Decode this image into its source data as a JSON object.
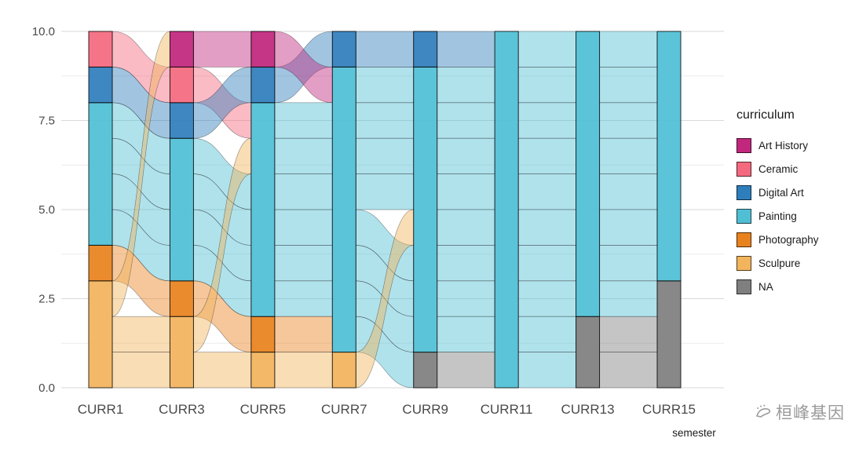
{
  "watermark": {
    "text": "桓峰基因"
  },
  "chart_data": {
    "type": "alluvial",
    "title": "",
    "xlabel": "semester",
    "ylabel": "",
    "ylim": [
      0,
      10
    ],
    "grid": true,
    "y_ticks": [
      {
        "label": "0.0",
        "value": 0
      },
      {
        "label": "2.5",
        "value": 2.5
      },
      {
        "label": "5.0",
        "value": 5
      },
      {
        "label": "7.5",
        "value": 7.5
      },
      {
        "label": "10.0",
        "value": 10
      }
    ],
    "y_minor": [
      1.25,
      3.75,
      6.25,
      8.75
    ],
    "axes": [
      "CURR1",
      "CURR3",
      "CURR5",
      "CURR7",
      "CURR9",
      "CURR11",
      "CURR13",
      "CURR15"
    ],
    "legend": {
      "title": "curriculum",
      "position": "right",
      "entries": [
        {
          "label": "Art History",
          "color": "#C2277E"
        },
        {
          "label": "Ceramic",
          "color": "#F4697F"
        },
        {
          "label": "Digital Art",
          "color": "#2F7EBC"
        },
        {
          "label": "Painting",
          "color": "#50BFD5"
        },
        {
          "label": "Photography",
          "color": "#E8821E"
        },
        {
          "label": "Sculpure",
          "color": "#F2B45C"
        },
        {
          "label": "NA",
          "color": "#7F7F7F"
        }
      ]
    },
    "colors": {
      "Art History": "#C2277E",
      "Ceramic": "#F4697F",
      "Digital Art": "#2F7EBC",
      "Painting": "#50BFD5",
      "Photography": "#E8821E",
      "Sculpure": "#F2B45C",
      "NA": "#7F7F7F"
    },
    "strata": [
      [
        {
          "c": "Sculpure",
          "y0": 0,
          "y1": 3
        },
        {
          "c": "Photography",
          "y0": 3,
          "y1": 4
        },
        {
          "c": "Painting",
          "y0": 4,
          "y1": 8
        },
        {
          "c": "Digital Art",
          "y0": 8,
          "y1": 9
        },
        {
          "c": "Ceramic",
          "y0": 9,
          "y1": 10
        }
      ],
      [
        {
          "c": "Sculpure",
          "y0": 0,
          "y1": 2
        },
        {
          "c": "Photography",
          "y0": 2,
          "y1": 3
        },
        {
          "c": "Painting",
          "y0": 3,
          "y1": 7
        },
        {
          "c": "Digital Art",
          "y0": 7,
          "y1": 8
        },
        {
          "c": "Ceramic",
          "y0": 8,
          "y1": 9
        },
        {
          "c": "Art History",
          "y0": 9,
          "y1": 10
        }
      ],
      [
        {
          "c": "Sculpure",
          "y0": 0,
          "y1": 1
        },
        {
          "c": "Photography",
          "y0": 1,
          "y1": 2
        },
        {
          "c": "Painting",
          "y0": 2,
          "y1": 8
        },
        {
          "c": "Digital Art",
          "y0": 8,
          "y1": 9
        },
        {
          "c": "Art History",
          "y0": 9,
          "y1": 10
        }
      ],
      [
        {
          "c": "Sculpure",
          "y0": 0,
          "y1": 1
        },
        {
          "c": "Painting",
          "y0": 1,
          "y1": 9
        },
        {
          "c": "Digital Art",
          "y0": 9,
          "y1": 10
        }
      ],
      [
        {
          "c": "NA",
          "y0": 0,
          "y1": 1
        },
        {
          "c": "Painting",
          "y0": 1,
          "y1": 9
        },
        {
          "c": "Digital Art",
          "y0": 9,
          "y1": 10
        }
      ],
      [
        {
          "c": "Painting",
          "y0": 0,
          "y1": 10
        }
      ],
      [
        {
          "c": "NA",
          "y0": 0,
          "y1": 2
        },
        {
          "c": "Painting",
          "y0": 2,
          "y1": 10
        }
      ],
      [
        {
          "c": "NA",
          "y0": 0,
          "y1": 3
        },
        {
          "c": "Painting",
          "y0": 3,
          "y1": 10
        }
      ]
    ],
    "alluvia": [
      {
        "cats": [
          "Ceramic",
          "Ceramic",
          "Painting",
          "Painting",
          "Painting",
          "Painting",
          "Painting",
          "Painting"
        ],
        "y": [
          9,
          8,
          7,
          7,
          7,
          7,
          7,
          7
        ]
      },
      {
        "cats": [
          "Digital Art",
          "Digital Art",
          "Digital Art",
          "Digital Art",
          "Digital Art",
          "Painting",
          "Painting",
          "Painting"
        ],
        "y": [
          8,
          7,
          8,
          9,
          9,
          9,
          9,
          9
        ]
      },
      {
        "cats": [
          "Painting",
          "Painting",
          "Painting",
          "Painting",
          "Painting",
          "Painting",
          "NA",
          "NA"
        ],
        "y": [
          4,
          3,
          2,
          2,
          1,
          1,
          1,
          1
        ]
      },
      {
        "cats": [
          "Painting",
          "Painting",
          "Painting",
          "Painting",
          "Painting",
          "Painting",
          "Painting",
          "NA"
        ],
        "y": [
          5,
          4,
          3,
          3,
          2,
          2,
          2,
          2
        ]
      },
      {
        "cats": [
          "Painting",
          "Painting",
          "Painting",
          "Painting",
          "Painting",
          "Painting",
          "Painting",
          "Painting"
        ],
        "y": [
          6,
          5,
          4,
          4,
          3,
          3,
          3,
          3
        ]
      },
      {
        "cats": [
          "Painting",
          "Painting",
          "Painting",
          "Painting",
          "Painting",
          "Painting",
          "Painting",
          "Painting"
        ],
        "y": [
          7,
          6,
          5,
          5,
          5,
          5,
          5,
          5
        ]
      },
      {
        "cats": [
          "Photography",
          "Photography",
          "Photography",
          "Painting",
          "NA",
          "Painting",
          "NA",
          "NA"
        ],
        "y": [
          3,
          2,
          1,
          1,
          0,
          0,
          0,
          0
        ]
      },
      {
        "cats": [
          "Sculpure",
          "Sculpure",
          "Sculpure",
          "Sculpure",
          "Painting",
          "Painting",
          "Painting",
          "Painting"
        ],
        "y": [
          0,
          0,
          0,
          0,
          4,
          4,
          4,
          4
        ]
      },
      {
        "cats": [
          "Sculpure",
          "Sculpure",
          "Painting",
          "Painting",
          "Painting",
          "Painting",
          "Painting",
          "Painting"
        ],
        "y": [
          1,
          1,
          6,
          6,
          6,
          6,
          6,
          6
        ]
      },
      {
        "cats": [
          "Sculpure",
          "Art History",
          "Art History",
          "Painting",
          "Painting",
          "Painting",
          "Painting",
          "Painting"
        ],
        "y": [
          2,
          9,
          9,
          8,
          8,
          8,
          8,
          8
        ]
      }
    ]
  }
}
